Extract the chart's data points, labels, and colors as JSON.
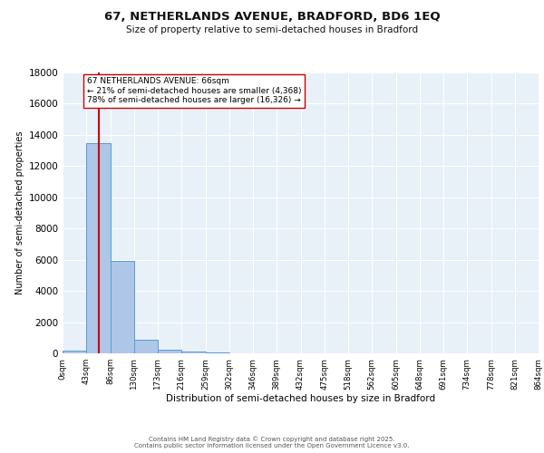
{
  "title_line1": "67, NETHERLANDS AVENUE, BRADFORD, BD6 1EQ",
  "title_line2": "Size of property relative to semi-detached houses in Bradford",
  "xlabel": "Distribution of semi-detached houses by size in Bradford",
  "ylabel": "Number of semi-detached properties",
  "bin_edges": [
    0,
    43,
    86,
    129,
    172,
    215,
    258,
    301,
    344,
    387,
    430,
    473,
    516,
    559,
    602,
    645,
    688,
    731,
    774,
    817,
    860
  ],
  "bin_labels": [
    "0sqm",
    "43sqm",
    "86sqm",
    "130sqm",
    "173sqm",
    "216sqm",
    "259sqm",
    "302sqm",
    "346sqm",
    "389sqm",
    "432sqm",
    "475sqm",
    "518sqm",
    "562sqm",
    "605sqm",
    "648sqm",
    "691sqm",
    "734sqm",
    "778sqm",
    "821sqm",
    "864sqm"
  ],
  "bar_heights": [
    200,
    13500,
    5900,
    900,
    250,
    100,
    50,
    10,
    5,
    2,
    1,
    0,
    0,
    0,
    0,
    0,
    0,
    0,
    0,
    0
  ],
  "bar_color": "#aec6e8",
  "bar_edge_color": "#5b9bd5",
  "property_size": 66,
  "property_label": "67 NETHERLANDS AVENUE: 66sqm",
  "pct_smaller": 21,
  "count_smaller": 4368,
  "pct_larger": 78,
  "count_larger": 16326,
  "red_line_color": "#cc0000",
  "ylim": [
    0,
    18000
  ],
  "yticks": [
    0,
    2000,
    4000,
    6000,
    8000,
    10000,
    12000,
    14000,
    16000,
    18000
  ],
  "bg_color": "#e8f0f8",
  "footer_line1": "Contains HM Land Registry data © Crown copyright and database right 2025.",
  "footer_line2": "Contains public sector information licensed under the Open Government Licence v3.0."
}
